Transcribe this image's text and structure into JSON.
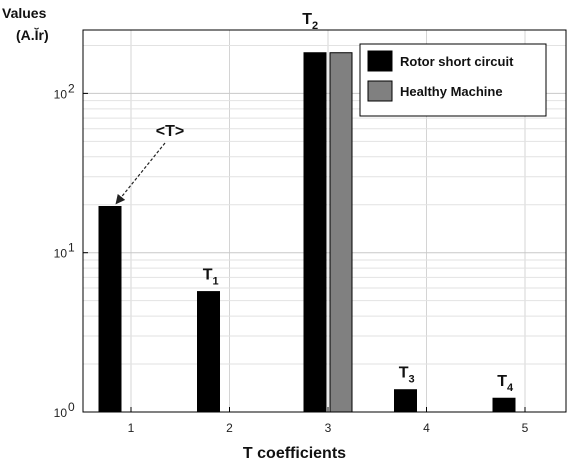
{
  "chart_data": {
    "type": "bar",
    "categories": [
      "1",
      "2",
      "3",
      "4",
      "5"
    ],
    "series": [
      {
        "name": "Rotor short circuit",
        "color": "#000000",
        "values": [
          19.5,
          5.7,
          180,
          1.38,
          1.22
        ]
      },
      {
        "name": "Healthy Machine",
        "color": "#808080",
        "values": [
          null,
          null,
          180,
          null,
          null
        ]
      }
    ],
    "xlabel": "T coefficients",
    "ylabel_line1": "Values",
    "ylabel_line2": "(A.Ĭr)",
    "yscale": "log",
    "ylim": [
      1,
      250
    ],
    "ytick_labels": [
      {
        "base": "10",
        "exp": "0",
        "value": 1
      },
      {
        "base": "10",
        "exp": "1",
        "value": 10
      },
      {
        "base": "10",
        "exp": "2",
        "value": 100
      }
    ],
    "grid": true,
    "legend_position": "top-right",
    "annotations": [
      {
        "category_index": 0,
        "text": "<T>",
        "base": "",
        "sub": ""
      },
      {
        "category_index": 1,
        "text": "",
        "base": "T",
        "sub": "1"
      },
      {
        "category_index": 2,
        "text": "",
        "base": "T",
        "sub": "2"
      },
      {
        "category_index": 3,
        "text": "",
        "base": "T",
        "sub": "3"
      },
      {
        "category_index": 4,
        "text": "",
        "base": "T",
        "sub": "4"
      }
    ]
  }
}
